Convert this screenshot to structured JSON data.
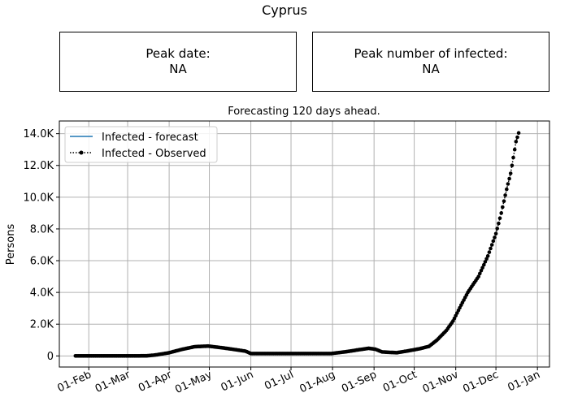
{
  "suptitle": "Cyprus",
  "peak_date_box": {
    "label": "Peak date:",
    "value": "NA"
  },
  "peak_number_box": {
    "label": "Peak number of infected:",
    "value": "NA"
  },
  "chart_data": {
    "type": "line",
    "title": "Forecasting 120 days ahead.",
    "xlabel": "",
    "ylabel": "Persons",
    "x_unit": "date (2020)",
    "xlim": [
      "2020-01-10",
      "2021-01-10"
    ],
    "ylim": [
      -700,
      14800
    ],
    "grid": true,
    "legend_position": "top-left",
    "x_ticks": [
      {
        "date": "2020-02-01",
        "label": "01-Feb"
      },
      {
        "date": "2020-03-01",
        "label": "01-Mar"
      },
      {
        "date": "2020-04-01",
        "label": "01-Apr"
      },
      {
        "date": "2020-05-01",
        "label": "01-May"
      },
      {
        "date": "2020-06-01",
        "label": "01-Jun"
      },
      {
        "date": "2020-07-01",
        "label": "01-Jul"
      },
      {
        "date": "2020-08-01",
        "label": "01-Aug"
      },
      {
        "date": "2020-09-01",
        "label": "01-Sep"
      },
      {
        "date": "2020-10-01",
        "label": "01-Oct"
      },
      {
        "date": "2020-11-01",
        "label": "01-Nov"
      },
      {
        "date": "2020-12-01",
        "label": "01-Dec"
      },
      {
        "date": "2021-01-01",
        "label": "01-Jan"
      }
    ],
    "y_ticks": [
      {
        "value": 0,
        "label": "0"
      },
      {
        "value": 2000,
        "label": "2.0K"
      },
      {
        "value": 4000,
        "label": "4.0K"
      },
      {
        "value": 6000,
        "label": "6.0K"
      },
      {
        "value": 8000,
        "label": "8.0K"
      },
      {
        "value": 10000,
        "label": "10.0K"
      },
      {
        "value": 12000,
        "label": "12.0K"
      },
      {
        "value": 14000,
        "label": "14.0K"
      }
    ],
    "series": [
      {
        "name": "Infected - forecast",
        "style": "solid",
        "color": "#1f77b4",
        "points": []
      },
      {
        "name": "Infected - Observed",
        "style": "dotted-marker",
        "color": "#000000",
        "points": [
          [
            "2020-01-22",
            0
          ],
          [
            "2020-03-01",
            0
          ],
          [
            "2020-03-15",
            5
          ],
          [
            "2020-03-22",
            60
          ],
          [
            "2020-04-01",
            200
          ],
          [
            "2020-04-10",
            400
          ],
          [
            "2020-04-20",
            580
          ],
          [
            "2020-04-30",
            620
          ],
          [
            "2020-05-10",
            520
          ],
          [
            "2020-05-20",
            400
          ],
          [
            "2020-05-28",
            300
          ],
          [
            "2020-06-01",
            150
          ],
          [
            "2020-06-20",
            150
          ],
          [
            "2020-07-10",
            150
          ],
          [
            "2020-07-31",
            150
          ],
          [
            "2020-08-10",
            250
          ],
          [
            "2020-08-20",
            380
          ],
          [
            "2020-08-28",
            480
          ],
          [
            "2020-09-02",
            420
          ],
          [
            "2020-09-07",
            250
          ],
          [
            "2020-09-18",
            200
          ],
          [
            "2020-09-25",
            300
          ],
          [
            "2020-10-05",
            450
          ],
          [
            "2020-10-12",
            600
          ],
          [
            "2020-10-18",
            1000
          ],
          [
            "2020-10-25",
            1600
          ],
          [
            "2020-10-30",
            2200
          ],
          [
            "2020-11-05",
            3200
          ],
          [
            "2020-11-10",
            4000
          ],
          [
            "2020-11-18",
            5000
          ],
          [
            "2020-11-25",
            6300
          ],
          [
            "2020-12-01",
            7700
          ],
          [
            "2020-12-05",
            9000
          ],
          [
            "2020-12-09",
            10500
          ],
          [
            "2020-12-12",
            11500
          ],
          [
            "2020-12-14",
            12500
          ],
          [
            "2020-12-16",
            13500
          ],
          [
            "2020-12-18",
            14050
          ]
        ]
      }
    ]
  }
}
